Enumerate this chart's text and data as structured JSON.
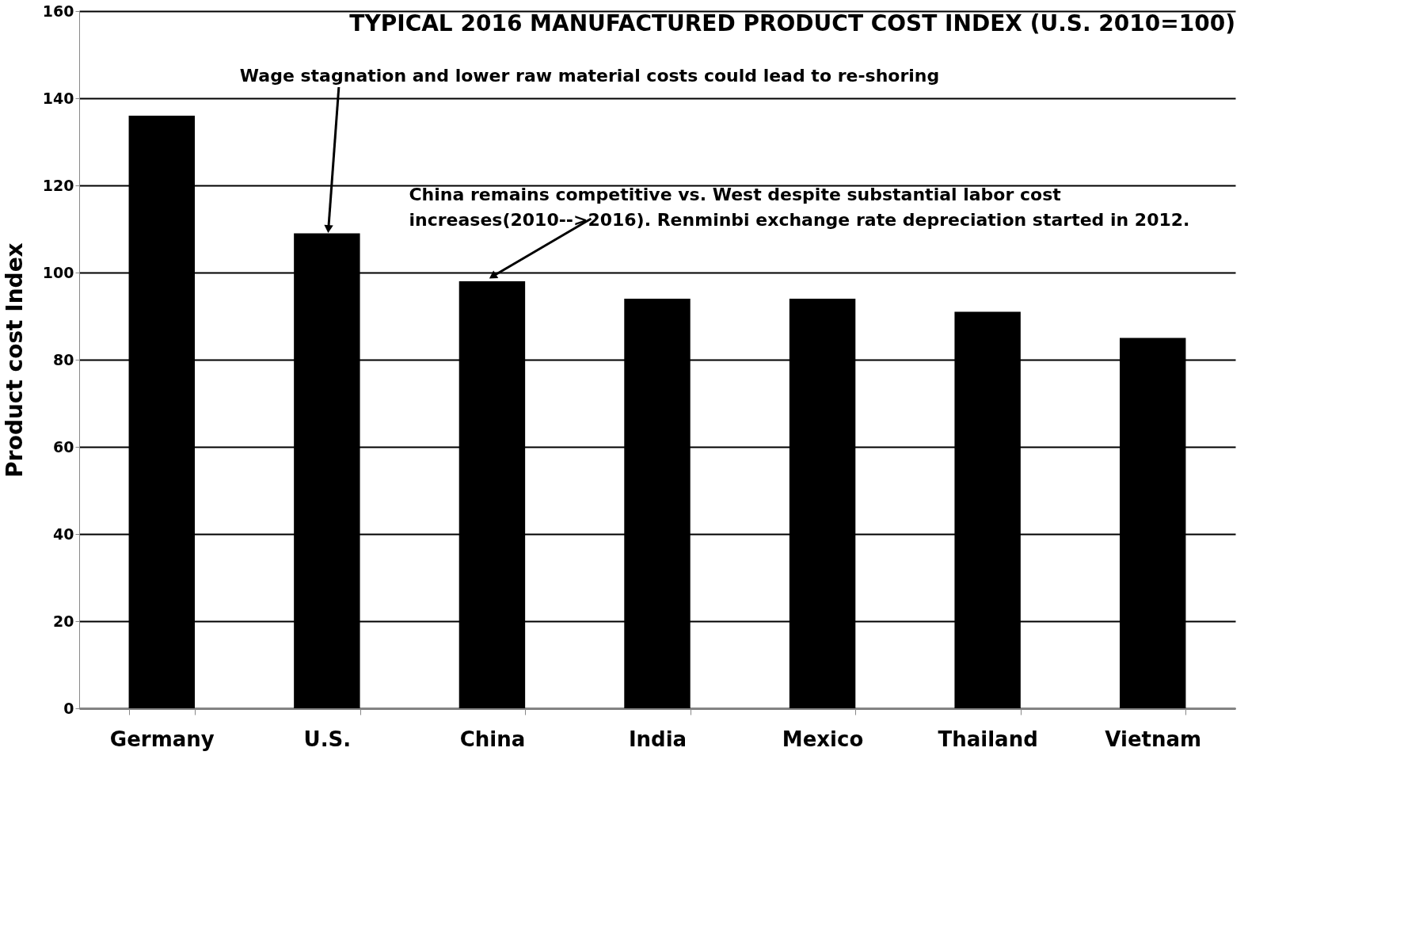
{
  "chart_data": {
    "type": "bar",
    "title": "TYPICAL 2016 MANUFACTURED PRODUCT COST INDEX (U.S. 2010=100)",
    "ylabel": "Product cost Index",
    "categories": [
      "Germany",
      "U.S.",
      "China",
      "India",
      "Mexico",
      "Thailand",
      "Vietnam"
    ],
    "values": [
      136,
      109,
      98,
      94,
      94,
      91,
      85
    ],
    "color": "#000000",
    "ylim": [
      0,
      160
    ],
    "yticks": [
      0,
      20,
      40,
      60,
      80,
      100,
      120,
      140,
      160
    ],
    "grid": "y",
    "annotations": [
      {
        "text": "Wage stagnation and lower raw material costs could lead to re-shoring",
        "x": "U.S.",
        "y": 109
      },
      {
        "text": "China remains competitive vs. West despite substantial labor cost increases(2010-->2016). Renminbi exchange rate depreciation started in 2012.",
        "x": "China",
        "y": 98
      }
    ]
  }
}
